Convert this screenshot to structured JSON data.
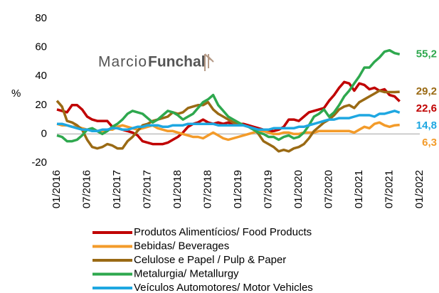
{
  "chart_data": {
    "type": "line",
    "y_label": "%",
    "logo": [
      "Marcio",
      "Funchal"
    ],
    "x": [
      "01/2016",
      "02/2016",
      "03/2016",
      "04/2016",
      "05/2016",
      "06/2016",
      "07/2016",
      "08/2016",
      "09/2016",
      "10/2016",
      "11/2016",
      "12/2016",
      "01/2017",
      "02/2017",
      "03/2017",
      "04/2017",
      "05/2017",
      "06/2017",
      "07/2017",
      "08/2017",
      "09/2017",
      "10/2017",
      "11/2017",
      "12/2017",
      "01/2018",
      "02/2018",
      "03/2018",
      "04/2018",
      "05/2018",
      "06/2018",
      "07/2018",
      "08/2018",
      "09/2018",
      "10/2018",
      "11/2018",
      "12/2018",
      "01/2019",
      "02/2019",
      "03/2019",
      "04/2019",
      "05/2019",
      "06/2019",
      "07/2019",
      "08/2019",
      "09/2019",
      "10/2019",
      "11/2019",
      "12/2019",
      "01/2020",
      "02/2020",
      "03/2020",
      "04/2020",
      "05/2020",
      "06/2020",
      "07/2020",
      "08/2020",
      "09/2020",
      "10/2020",
      "11/2020",
      "12/2020",
      "01/2021",
      "02/2021",
      "03/2021",
      "04/2021",
      "05/2021",
      "06/2021",
      "07/2021",
      "08/2021",
      "09/2021"
    ],
    "xlim": [
      "01/2016",
      "01/2022"
    ],
    "xticks": [
      "01/2016",
      "07/2016",
      "01/2017",
      "07/2017",
      "01/2018",
      "07/2018",
      "01/2019",
      "07/2019",
      "01/2020",
      "07/2020",
      "01/2021",
      "07/2021",
      "01/2022"
    ],
    "ylim": [
      -20,
      80
    ],
    "yticks": [
      -20,
      0,
      20,
      40,
      60,
      80
    ],
    "series": [
      {
        "name": "Produtos Alimentícios/ Food Products",
        "color": "#c00000",
        "values": [
          17,
          16,
          15,
          20,
          20,
          17,
          12,
          10,
          9,
          9,
          9,
          5,
          4,
          3,
          2,
          1,
          -1,
          -5,
          -6,
          -7,
          -7,
          -7,
          -6,
          -4,
          -2,
          1,
          5,
          7,
          8,
          10,
          8,
          7,
          8,
          7,
          8,
          6,
          7,
          7,
          6,
          5,
          4,
          3,
          2,
          2,
          3,
          5,
          10,
          10,
          9,
          12,
          15,
          16,
          17,
          18,
          23,
          27,
          32,
          36,
          35,
          30,
          35,
          34,
          31,
          32,
          30,
          31,
          27,
          26,
          22.6
        ],
        "value_labels": {
          "68": "22,6"
        }
      },
      {
        "name": "Bebidas/ Beverages",
        "color": "#f39b2a",
        "values": [
          7,
          6,
          6,
          5,
          5,
          4,
          3,
          3,
          2,
          2,
          3,
          3,
          5,
          6,
          5,
          4,
          3,
          4,
          5,
          6,
          4,
          3,
          2,
          2,
          1,
          0,
          -1,
          -2,
          -2,
          -3,
          -1,
          1,
          -1,
          -3,
          -4,
          -3,
          -2,
          -1,
          0,
          1,
          2,
          2,
          1,
          0,
          0,
          1,
          1,
          0,
          0,
          1,
          1,
          1,
          2,
          2,
          2,
          2,
          2,
          2,
          2,
          1,
          3,
          5,
          4,
          7,
          8,
          6,
          5,
          6,
          6.3
        ],
        "value_labels": {
          "68": "6,3"
        }
      },
      {
        "name": "Celulose e Papel / Pulp & Paper",
        "color": "#9a6a14",
        "values": [
          23,
          19,
          9,
          8,
          6,
          3,
          -4,
          -9,
          -10,
          -9,
          -7,
          -8,
          -10,
          -10,
          -5,
          -2,
          2,
          6,
          7,
          9,
          10,
          11,
          12,
          15,
          14,
          15,
          18,
          19,
          20,
          20,
          22,
          17,
          14,
          12,
          10,
          8,
          7,
          6,
          5,
          4,
          0,
          -5,
          -7,
          -9,
          -12,
          -11,
          -12,
          -10,
          -9,
          -7,
          -3,
          2,
          5,
          8,
          10,
          13,
          17,
          19,
          20,
          18,
          22,
          24,
          26,
          28,
          30,
          29,
          29,
          29,
          29.2
        ],
        "value_labels": {
          "68": "29,2"
        }
      },
      {
        "name": "Metalurgia/ Metallurgy",
        "color": "#2ea84e",
        "values": [
          -1,
          -2,
          -5,
          -5,
          -4,
          -1,
          3,
          4,
          2,
          0,
          2,
          5,
          7,
          10,
          14,
          16,
          15,
          14,
          11,
          8,
          10,
          13,
          16,
          15,
          13,
          10,
          12,
          14,
          18,
          22,
          24,
          27,
          20,
          16,
          12,
          10,
          8,
          6,
          5,
          3,
          1,
          0,
          -2,
          -2,
          -4,
          -2,
          -1,
          -3,
          -2,
          1,
          6,
          12,
          14,
          17,
          12,
          15,
          20,
          26,
          30,
          35,
          40,
          46,
          46,
          50,
          53,
          57,
          58,
          56,
          55.2
        ],
        "value_labels": {
          "68": "55,2"
        }
      },
      {
        "name": "Veículos Automotores/ Motor Vehicles",
        "color": "#1ea7e1",
        "values": [
          7,
          7,
          6,
          5,
          4,
          3,
          3,
          2,
          2,
          3,
          3,
          4,
          4,
          3,
          3,
          4,
          5,
          5,
          6,
          6,
          6,
          5,
          5,
          6,
          6,
          6,
          7,
          7,
          7,
          7,
          7,
          7,
          6,
          6,
          6,
          6,
          6,
          6,
          5,
          4,
          3,
          3,
          3,
          4,
          4,
          4,
          4,
          4,
          5,
          5,
          6,
          7,
          8,
          9,
          10,
          10,
          11,
          11,
          11,
          12,
          13,
          13,
          13,
          12,
          14,
          14,
          15,
          16,
          14.8
        ],
        "value_labels": {
          "68": "14,8"
        }
      }
    ]
  }
}
